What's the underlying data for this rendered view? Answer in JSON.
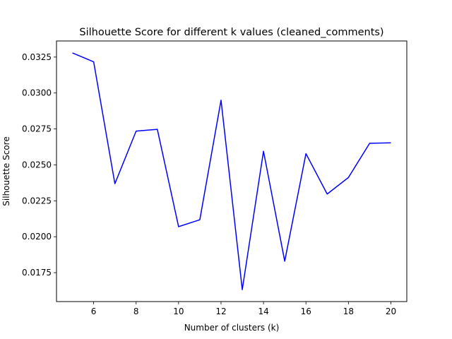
{
  "chart_data": {
    "type": "line",
    "title": "Silhouette Score for different k values (cleaned_comments)",
    "xlabel": "Number of clusters (k)",
    "ylabel": "Silhouette Score",
    "x": [
      5,
      6,
      7,
      8,
      9,
      10,
      11,
      12,
      13,
      14,
      15,
      16,
      17,
      18,
      19,
      20
    ],
    "series": [
      {
        "color": "#0000ff",
        "values": [
          0.03279,
          0.03217,
          0.02369,
          0.02735,
          0.02747,
          0.0207,
          0.02118,
          0.0295,
          0.01632,
          0.02595,
          0.0183,
          0.02578,
          0.02297,
          0.02412,
          0.0265,
          0.02653
        ]
      }
    ],
    "xlim": [
      4.25,
      20.75
    ],
    "ylim": [
      0.01549,
      0.03362
    ],
    "xticks": [
      6,
      8,
      10,
      12,
      14,
      16,
      18,
      20
    ],
    "xtick_labels": [
      "6",
      "8",
      "10",
      "12",
      "14",
      "16",
      "18",
      "20"
    ],
    "yticks": [
      0.0175,
      0.02,
      0.0225,
      0.025,
      0.0275,
      0.03,
      0.0325
    ],
    "ytick_labels": [
      "0.0175",
      "0.0200",
      "0.0225",
      "0.0250",
      "0.0275",
      "0.0300",
      "0.0325"
    ],
    "grid": false,
    "legend": "none"
  }
}
